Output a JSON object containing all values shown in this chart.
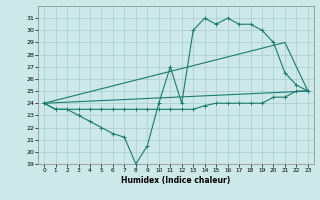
{
  "xlabel": "Humidex (Indice chaleur)",
  "x": [
    0,
    1,
    2,
    3,
    4,
    5,
    6,
    7,
    8,
    9,
    10,
    11,
    12,
    13,
    14,
    15,
    16,
    17,
    18,
    19,
    20,
    21,
    22,
    23
  ],
  "line1": [
    24,
    23.5,
    23.5,
    23,
    22.5,
    22,
    21.5,
    21.2,
    19,
    20.5,
    24,
    27,
    24,
    30,
    31,
    30.5,
    31,
    30.5,
    30.5,
    30,
    29,
    26.5,
    25.5,
    25
  ],
  "line2": [
    24,
    23.5,
    23.5,
    23.5,
    23.5,
    23.5,
    23.5,
    23.5,
    23.5,
    23.5,
    23.5,
    23.5,
    23.5,
    23.5,
    23.8,
    24,
    24,
    24,
    24,
    24,
    24.5,
    24.5,
    25,
    25
  ],
  "line3_x": [
    0,
    23
  ],
  "line3_y": [
    24,
    25
  ],
  "line4_x": [
    0,
    21,
    23
  ],
  "line4_y": [
    24,
    29,
    25
  ],
  "ylim": [
    19,
    32
  ],
  "xlim": [
    -0.5,
    23.5
  ],
  "yticks": [
    19,
    20,
    21,
    22,
    23,
    24,
    25,
    26,
    27,
    28,
    29,
    30,
    31
  ],
  "xticks": [
    0,
    1,
    2,
    3,
    4,
    5,
    6,
    7,
    8,
    9,
    10,
    11,
    12,
    13,
    14,
    15,
    16,
    17,
    18,
    19,
    20,
    21,
    22,
    23
  ],
  "line_color": "#1a7a6e",
  "bg_color": "#cce8e8",
  "grid_color": "#aacaca"
}
